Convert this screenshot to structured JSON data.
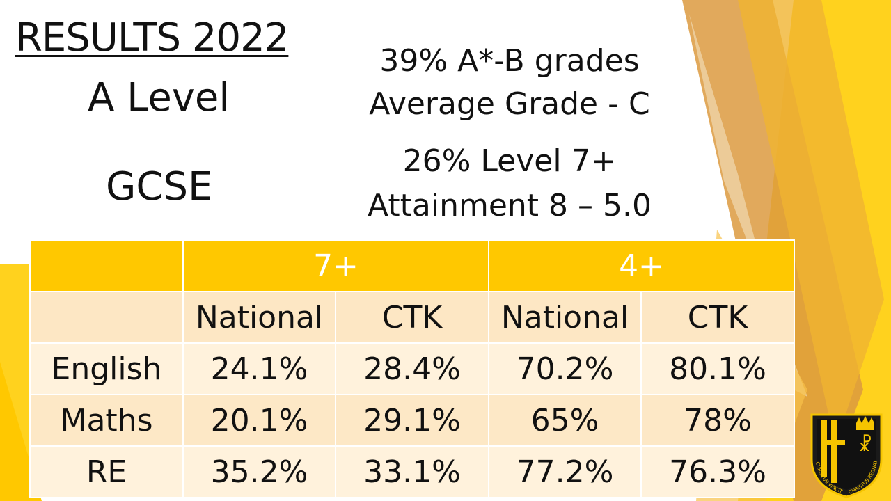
{
  "slide": {
    "title": "RESULTS 2022",
    "a_level_label": "A Level",
    "gcse_label": "GCSE",
    "a_level_stats": [
      "39% A*-B grades",
      "Average Grade - C"
    ],
    "gcse_stats": [
      "26% Level 7+",
      "Attainment 8 – 5.0"
    ]
  },
  "table": {
    "group_headers": [
      "",
      "7+",
      "4+"
    ],
    "sub_headers": [
      "",
      "National",
      "CTK",
      "National",
      "CTK"
    ],
    "rows": [
      {
        "subject": "English",
        "values": [
          "24.1%",
          "28.4%",
          "70.2%",
          "80.1%"
        ]
      },
      {
        "subject": "Maths",
        "values": [
          "20.1%",
          "29.1%",
          "65%",
          "78%"
        ]
      },
      {
        "subject": "RE",
        "values": [
          "35.2%",
          "33.1%",
          "77.2%",
          "76.3%"
        ]
      }
    ]
  },
  "crest": {
    "motto_left": "CHRISTUS VINCIT",
    "motto_right": "CHRISTUS REGNAT"
  },
  "colors": {
    "accent_yellow": "#ffc800",
    "accent_orange": "#e89a2a",
    "header_text": "#ffffff",
    "row_light": "#fff2dc"
  }
}
